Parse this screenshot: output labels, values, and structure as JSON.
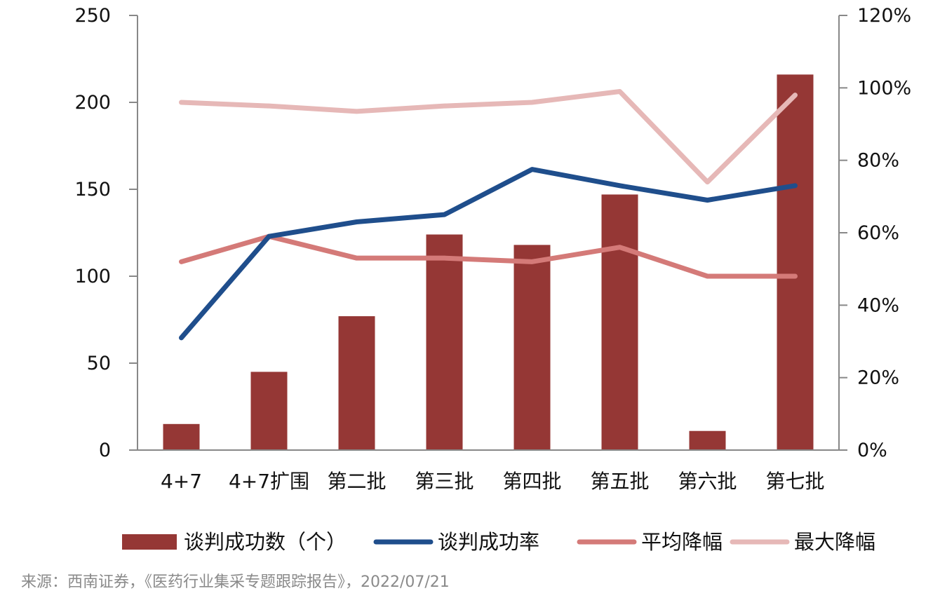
{
  "chart_data": {
    "type": "bar",
    "categories": [
      "4+7",
      "4+7扩围",
      "第二批",
      "第三批",
      "第四批",
      "第五批",
      "第六批",
      "第七批"
    ],
    "left_axis": {
      "ylim": [
        0,
        250
      ],
      "ticks": [
        0,
        50,
        100,
        150,
        200,
        250
      ],
      "tick_labels": [
        "0",
        "50",
        "100",
        "150",
        "200",
        "250"
      ]
    },
    "right_axis": {
      "ylim": [
        0,
        1.2
      ],
      "ticks": [
        0,
        0.2,
        0.4,
        0.6,
        0.8,
        1.0,
        1.2
      ],
      "tick_labels": [
        "0%",
        "20%",
        "40%",
        "60%",
        "80%",
        "100%",
        "120%"
      ]
    },
    "series": [
      {
        "name": "谈判成功数（个）",
        "type": "bar",
        "axis": "left",
        "color": "#953735",
        "values": [
          15,
          45,
          77,
          124,
          118,
          147,
          11,
          216
        ]
      },
      {
        "name": "谈判成功率",
        "type": "line",
        "axis": "right",
        "color": "#1f4e8c",
        "values": [
          0.31,
          0.59,
          0.63,
          0.65,
          0.775,
          0.73,
          0.69,
          0.73
        ]
      },
      {
        "name": "平均降幅",
        "type": "line",
        "axis": "right",
        "color": "#d47a78",
        "values": [
          0.52,
          0.59,
          0.53,
          0.53,
          0.52,
          0.56,
          0.48,
          0.48
        ]
      },
      {
        "name": "最大降幅",
        "type": "line",
        "axis": "right",
        "color": "#e6b8b7",
        "values": [
          0.96,
          0.95,
          0.935,
          0.95,
          0.96,
          0.99,
          0.74,
          0.98
        ]
      }
    ],
    "legend_position": "bottom",
    "grid": false
  },
  "source": "来源：西南证券，《医药行业集采专题跟踪报告》，2022/07/21"
}
